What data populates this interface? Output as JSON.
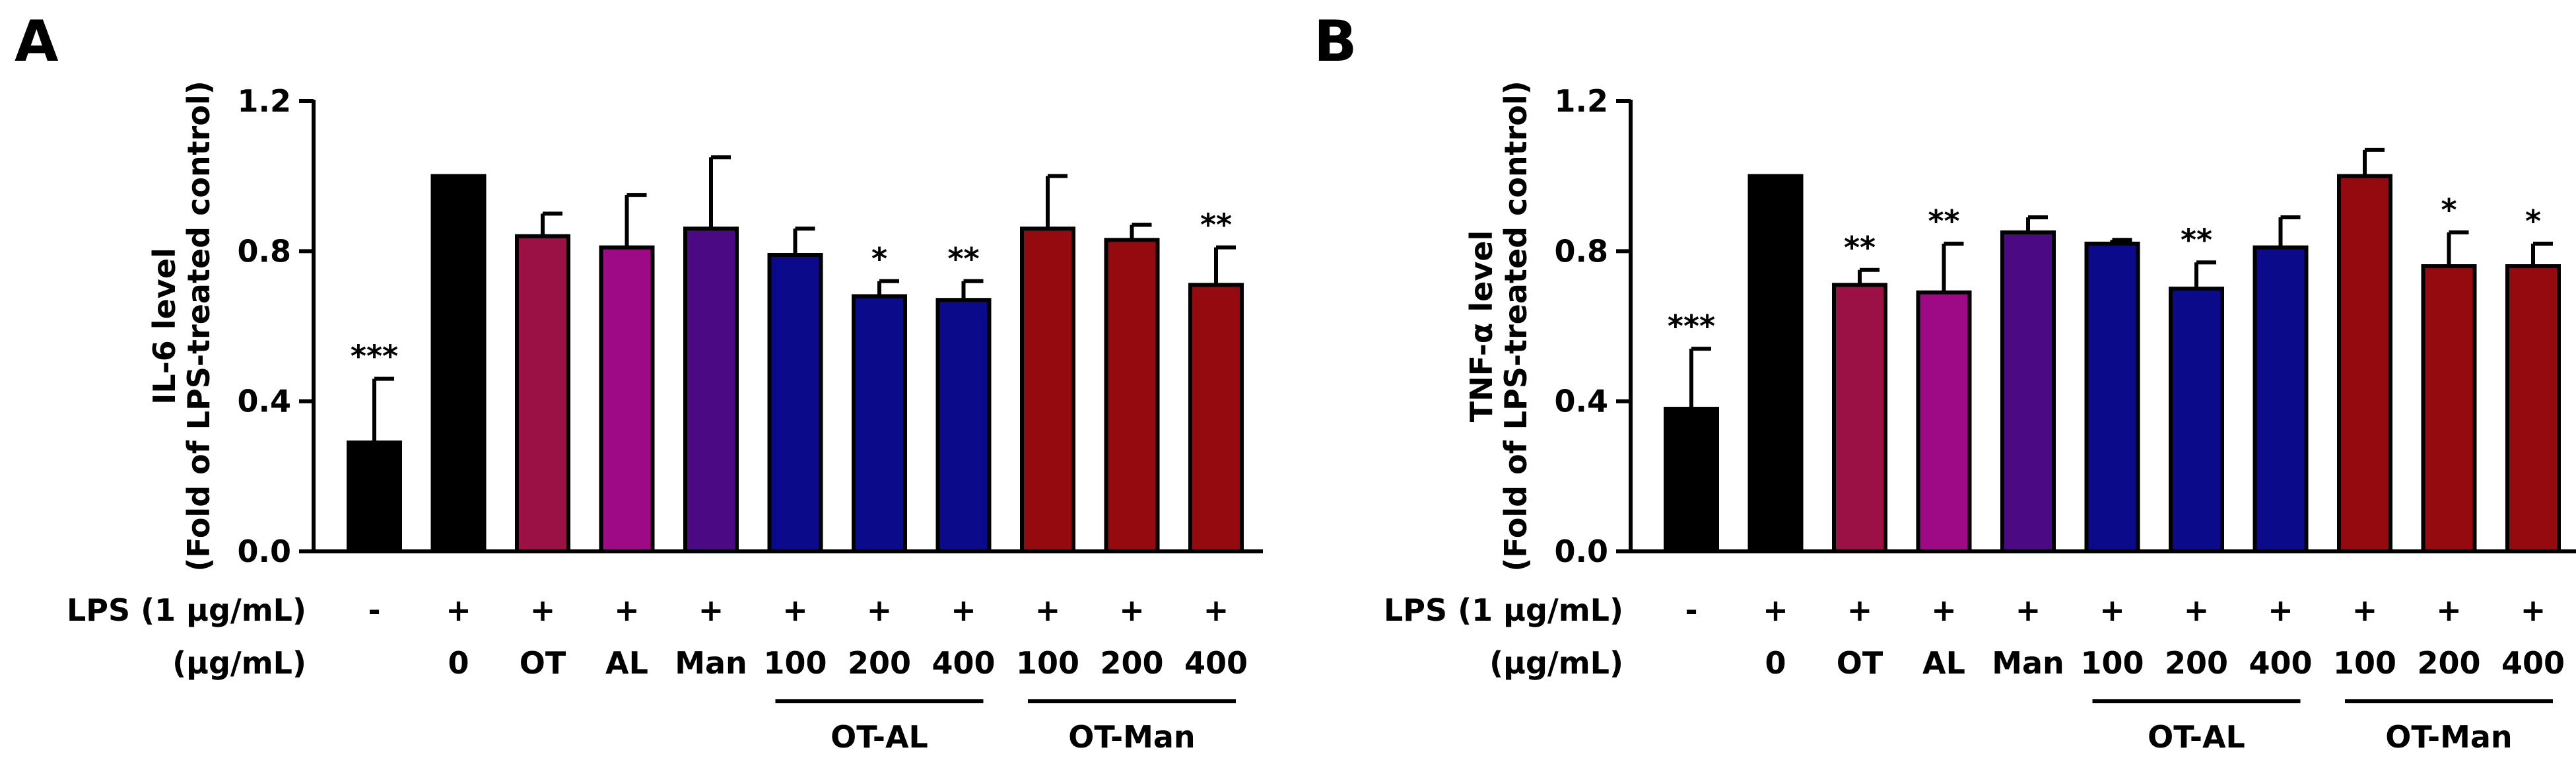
{
  "chart_data": [
    {
      "type": "bar",
      "panel_label": "A",
      "ylabel_line1": "IL-6 level",
      "ylabel_line2": "(Fold of LPS-treated control)",
      "ylim": [
        0,
        1.2
      ],
      "yticks": [
        0.0,
        0.4,
        0.8,
        1.2
      ],
      "ytick_labels": [
        "0.0",
        "0.4",
        "0.8",
        "1.2"
      ],
      "lps_row_label": "LPS (1 μg/mL)",
      "dose_row_label": "(μg/mL)",
      "lps_signs": [
        "-",
        "+",
        "+",
        "+",
        "+",
        "+",
        "+",
        "+",
        "+",
        "+",
        "+"
      ],
      "dose_labels": [
        "",
        "0",
        "OT",
        "AL",
        "Man",
        "100",
        "200",
        "400",
        "100",
        "200",
        "400"
      ],
      "groups": [
        {
          "name": "OT-AL",
          "from": 5,
          "to": 7
        },
        {
          "name": "OT-Man",
          "from": 8,
          "to": 10
        }
      ],
      "values": [
        0.29,
        1.0,
        0.84,
        0.81,
        0.86,
        0.79,
        0.68,
        0.67,
        0.86,
        0.83,
        0.71
      ],
      "errors": [
        0.17,
        0.0,
        0.06,
        0.14,
        0.19,
        0.07,
        0.04,
        0.05,
        0.14,
        0.04,
        0.1
      ],
      "significance": [
        "***",
        "",
        "",
        "",
        "",
        "",
        "*",
        "**",
        "",
        "",
        "**"
      ],
      "colors": [
        "#000000",
        "#000000",
        "#9b1146",
        "#9e0a85",
        "#4b0a83",
        "#0a0a8a",
        "#0a0a8a",
        "#0a0a8a",
        "#940a0f",
        "#940a0f",
        "#940a0f"
      ]
    },
    {
      "type": "bar",
      "panel_label": "B",
      "ylabel_line1": "TNF-α level",
      "ylabel_line2": "(Fold of LPS-treated control)",
      "ylim": [
        0,
        1.2
      ],
      "yticks": [
        0.0,
        0.4,
        0.8,
        1.2
      ],
      "ytick_labels": [
        "0.0",
        "0.4",
        "0.8",
        "1.2"
      ],
      "lps_row_label": "LPS (1 μg/mL)",
      "dose_row_label": "(μg/mL)",
      "lps_signs": [
        "-",
        "+",
        "+",
        "+",
        "+",
        "+",
        "+",
        "+",
        "+",
        "+",
        "+"
      ],
      "dose_labels": [
        "",
        "0",
        "OT",
        "AL",
        "Man",
        "100",
        "200",
        "400",
        "100",
        "200",
        "400"
      ],
      "groups": [
        {
          "name": "OT-AL",
          "from": 5,
          "to": 7
        },
        {
          "name": "OT-Man",
          "from": 8,
          "to": 10
        }
      ],
      "values": [
        0.38,
        1.0,
        0.71,
        0.69,
        0.85,
        0.82,
        0.7,
        0.81,
        1.0,
        0.76,
        0.76
      ],
      "errors": [
        0.16,
        0.0,
        0.04,
        0.13,
        0.04,
        0.01,
        0.07,
        0.08,
        0.07,
        0.09,
        0.06
      ],
      "significance": [
        "***",
        "",
        "**",
        "**",
        "",
        "",
        "**",
        "",
        "",
        "*",
        "*"
      ],
      "colors": [
        "#000000",
        "#000000",
        "#9b1146",
        "#9e0a85",
        "#4b0a83",
        "#0a0a8a",
        "#0a0a8a",
        "#0a0a8a",
        "#940a0f",
        "#940a0f",
        "#940a0f"
      ]
    }
  ]
}
